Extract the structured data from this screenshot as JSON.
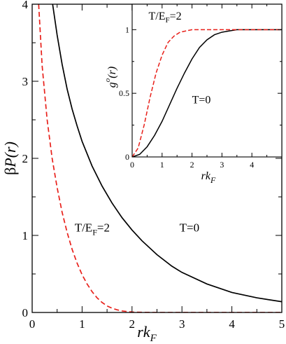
{
  "chart_data": [
    {
      "type": "line",
      "xlabel": {
        "main": "rk",
        "sub": "F"
      },
      "ylabel": {
        "prefix": "β",
        "main": "P(",
        "var": "r",
        "close": ")"
      },
      "xlim": [
        0,
        5
      ],
      "ylim": [
        0,
        4
      ],
      "xticks": [
        "0",
        "1",
        "2",
        "3",
        "4",
        "5"
      ],
      "yticks": [
        "0",
        "1",
        "2",
        "3",
        "4"
      ],
      "grid": false,
      "series": [
        {
          "label": {
            "main": "T=0",
            "sub": ""
          },
          "color": "#000000",
          "style": "solid",
          "x": [
            0.41,
            0.5,
            0.6,
            0.7,
            0.8,
            0.9,
            1.0,
            1.2,
            1.4,
            1.6,
            1.8,
            2.0,
            2.2,
            2.5,
            2.8,
            3.0,
            3.5,
            4.0,
            4.5,
            5.0
          ],
          "y": [
            4.0,
            3.6,
            3.22,
            2.9,
            2.64,
            2.42,
            2.22,
            1.9,
            1.64,
            1.42,
            1.23,
            1.07,
            0.93,
            0.75,
            0.6,
            0.52,
            0.37,
            0.26,
            0.19,
            0.14
          ]
        },
        {
          "label": {
            "main": "T/E",
            "sub": "F",
            "rest": "=2"
          },
          "color": "#e8201a",
          "style": "dashed",
          "x": [
            0.13,
            0.2,
            0.3,
            0.4,
            0.5,
            0.6,
            0.7,
            0.8,
            0.9,
            1.0,
            1.1,
            1.2,
            1.3,
            1.4,
            1.5,
            1.6,
            1.7,
            1.8,
            1.9,
            2.0,
            2.2,
            2.5,
            3.0,
            4.0,
            5.0
          ],
          "y": [
            4.0,
            3.2,
            2.5,
            2.0,
            1.62,
            1.3,
            1.04,
            0.82,
            0.64,
            0.49,
            0.37,
            0.27,
            0.19,
            0.13,
            0.085,
            0.055,
            0.035,
            0.02,
            0.012,
            0.006,
            0.002,
            0.0,
            0.0,
            0.0,
            0.0
          ]
        }
      ],
      "annotations": [
        {
          "main": "T=0",
          "sub": "",
          "rest": "",
          "x": 2.95,
          "y": 1.05
        },
        {
          "main": "T/E",
          "sub": "F",
          "rest": "=2",
          "x": 0.85,
          "y": 1.05
        }
      ]
    },
    {
      "type": "line",
      "inset": true,
      "xlabel": {
        "main": "rk",
        "sub": "F"
      },
      "ylabel": {
        "main": "g",
        "sup": "o",
        "open": "(",
        "var": "r",
        "close": ")"
      },
      "xlim": [
        0,
        5
      ],
      "ylim": [
        0,
        1.2
      ],
      "xticks": [
        "0",
        "1",
        "2",
        "3",
        "4"
      ],
      "yticks": [
        "0",
        "0.5",
        "1"
      ],
      "grid": false,
      "series": [
        {
          "label": {
            "main": "T=0",
            "sub": ""
          },
          "color": "#000000",
          "style": "solid",
          "x": [
            0.0,
            0.25,
            0.5,
            0.75,
            1.0,
            1.25,
            1.5,
            1.75,
            2.0,
            2.25,
            2.5,
            2.75,
            3.0,
            3.25,
            3.5,
            3.75,
            4.0,
            4.5,
            5.0
          ],
          "y": [
            0.0,
            0.02,
            0.08,
            0.17,
            0.28,
            0.41,
            0.54,
            0.66,
            0.77,
            0.86,
            0.92,
            0.96,
            0.98,
            0.99,
            1.0,
            1.0,
            1.0,
            1.0,
            1.0
          ]
        },
        {
          "label": {
            "main": "T/E",
            "sub": "F",
            "rest": "=2"
          },
          "color": "#e8201a",
          "style": "dashed",
          "x": [
            0.0,
            0.2,
            0.4,
            0.6,
            0.8,
            1.0,
            1.2,
            1.4,
            1.6,
            1.8,
            2.0,
            2.2,
            2.5,
            3.0,
            4.0,
            5.0
          ],
          "y": [
            0.0,
            0.07,
            0.25,
            0.47,
            0.66,
            0.8,
            0.9,
            0.95,
            0.98,
            0.99,
            1.0,
            1.0,
            1.0,
            1.0,
            1.0,
            1.0
          ]
        }
      ],
      "annotations": [
        {
          "main": "T/E",
          "sub": "F",
          "rest": "=2",
          "x": 0.55,
          "y": 1.08
        },
        {
          "main": "T=0",
          "sub": "",
          "rest": "",
          "x": 2.0,
          "y": 0.42
        }
      ]
    }
  ]
}
